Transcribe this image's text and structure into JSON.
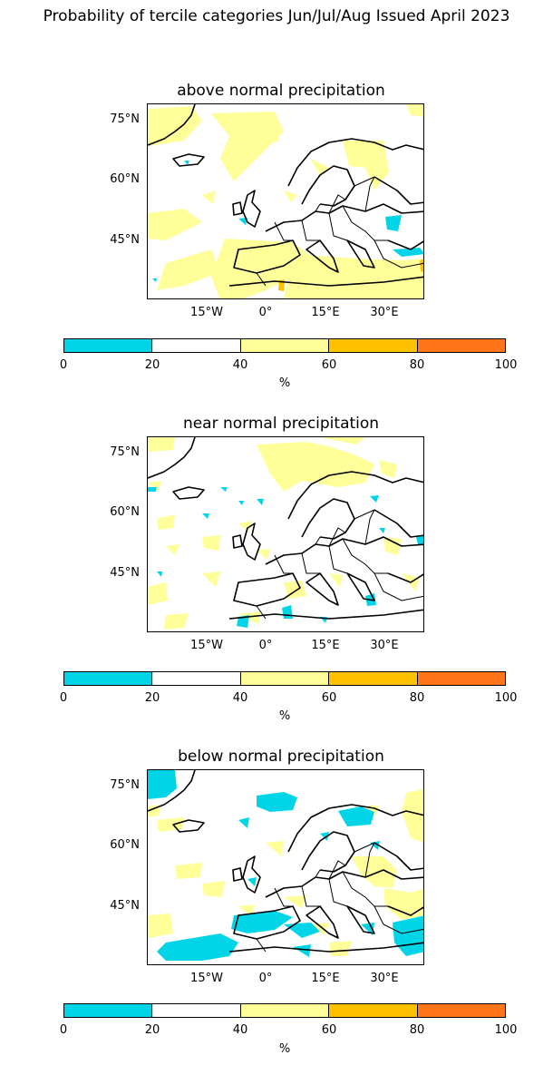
{
  "suptitle": "Probability of tercile categories Jun/Jul/Aug Issued April 2023",
  "axes": {
    "lat_labels": [
      "75°N",
      "60°N",
      "45°N"
    ],
    "lon_labels": [
      "15°W",
      "0°",
      "15°E",
      "30°E"
    ]
  },
  "colorbar": {
    "ticks": [
      "0",
      "20",
      "40",
      "60",
      "80",
      "100"
    ],
    "unit": "%",
    "colors": [
      "#00d5e8",
      "#ffffff",
      "#ffff99",
      "#ffc200",
      "#ff7518"
    ]
  },
  "panels": [
    {
      "title": "above normal precipitation",
      "dominant_category": "40-60"
    },
    {
      "title": "near normal precipitation",
      "dominant_category": "20-40"
    },
    {
      "title": "below normal precipitation",
      "dominant_category": "20-40"
    }
  ]
}
